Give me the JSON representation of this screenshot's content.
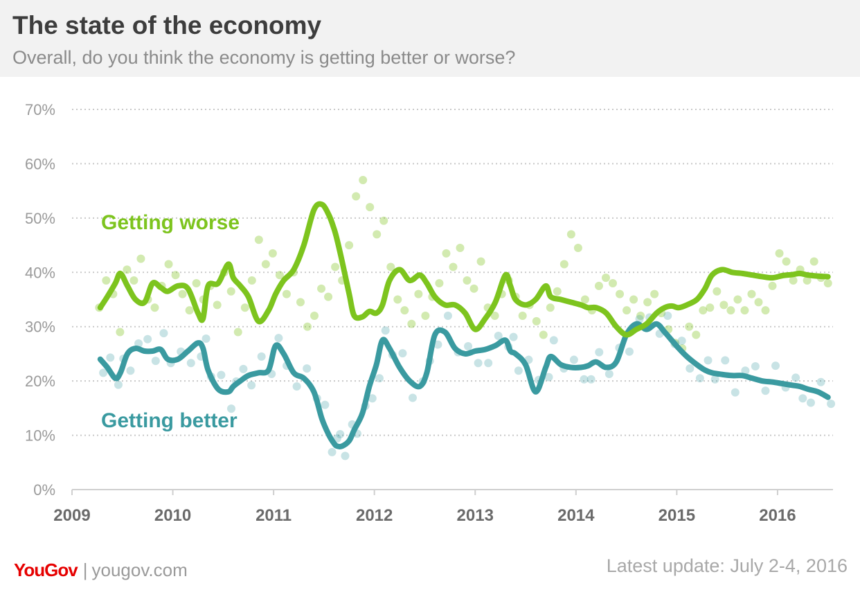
{
  "header": {
    "title": "The state of the economy",
    "subtitle": "Overall, do you think the economy is getting better or worse?"
  },
  "footer": {
    "logo": "YouGov",
    "separator": "|",
    "site": "yougov.com",
    "update": "Latest update: July 2-4, 2016"
  },
  "colors": {
    "worse": "#7dc41e",
    "better": "#3a9aa0",
    "axis": "#cfcfcf",
    "grid": "#c8c8c8",
    "tick": "#9a9a9a",
    "year": "#6a6a6a",
    "brand": "#e60000"
  },
  "chart_data": {
    "type": "line",
    "title": "The state of the economy",
    "subtitle": "Overall, do you think the economy is getting better or worse?",
    "xlim": [
      2009.0,
      2016.55
    ],
    "ylim": [
      0,
      70
    ],
    "xticks": [
      "2009",
      "2010",
      "2011",
      "2012",
      "2013",
      "2014",
      "2015",
      "2016"
    ],
    "yticks": [
      "0%",
      "10%",
      "20%",
      "30%",
      "40%",
      "50%",
      "60%",
      "70%"
    ],
    "grid": true,
    "series_labels_position": "inline",
    "series": [
      {
        "name": "Getting worse",
        "color": "#7dc41e",
        "x": [
          2009.28,
          2009.35,
          2009.43,
          2009.48,
          2009.55,
          2009.63,
          2009.72,
          2009.8,
          2009.88,
          2009.95,
          2010.05,
          2010.15,
          2010.25,
          2010.3,
          2010.35,
          2010.45,
          2010.55,
          2010.6,
          2010.67,
          2010.75,
          2010.85,
          2010.95,
          2011.02,
          2011.1,
          2011.2,
          2011.3,
          2011.4,
          2011.48,
          2011.55,
          2011.6,
          2011.63,
          2011.68,
          2011.75,
          2011.8,
          2011.88,
          2011.95,
          2012.02,
          2012.08,
          2012.15,
          2012.25,
          2012.35,
          2012.45,
          2012.52,
          2012.6,
          2012.7,
          2012.8,
          2012.9,
          2013.0,
          2013.1,
          2013.2,
          2013.3,
          2013.35,
          2013.4,
          2013.5,
          2013.6,
          2013.7,
          2013.75,
          2013.85,
          2013.95,
          2014.05,
          2014.12,
          2014.2,
          2014.3,
          2014.4,
          2014.5,
          2014.6,
          2014.7,
          2014.8,
          2014.88,
          2014.95,
          2015.02,
          2015.1,
          2015.2,
          2015.28,
          2015.35,
          2015.45,
          2015.55,
          2015.65,
          2015.75,
          2015.85,
          2015.95,
          2016.05,
          2016.15,
          2016.22,
          2016.3,
          2016.4,
          2016.5
        ],
        "values": [
          33.5,
          35.5,
          38,
          39.8,
          37.5,
          35,
          34.5,
          38,
          37.2,
          36.5,
          37.5,
          37,
          32.5,
          31.5,
          37.5,
          38,
          41.5,
          39,
          37.5,
          35.5,
          31,
          33,
          36,
          38.5,
          40.5,
          45,
          51.5,
          52.5,
          50.5,
          48,
          46,
          42,
          36,
          32,
          31.8,
          32.8,
          32.5,
          34,
          38.5,
          40.5,
          38.5,
          39.5,
          38,
          35.5,
          34,
          34,
          32.5,
          29.5,
          31.5,
          34.5,
          39.5,
          37.5,
          35,
          34,
          35,
          37.5,
          35.5,
          35,
          34.5,
          34,
          33.5,
          33.5,
          32.5,
          30,
          28.5,
          29.5,
          30.5,
          32.5,
          33.5,
          33.8,
          33.5,
          34,
          35,
          37,
          39.5,
          40.5,
          40,
          39.8,
          39.5,
          39.2,
          39,
          39.4,
          39.6,
          39.8,
          39.5,
          39.3,
          39.2
        ],
        "scatter_y": [
          33.5,
          38.5,
          36,
          29,
          40.5,
          38.5,
          42.5,
          35,
          33.5,
          37.5,
          41.5,
          39.5,
          36,
          33,
          38,
          35,
          37.5,
          34,
          40,
          36.5,
          29,
          33.5,
          38.5,
          46,
          41.5,
          43.5,
          39.5,
          36,
          40,
          34.5,
          30,
          32,
          37,
          35.5,
          41,
          38.5,
          45,
          54,
          57,
          52,
          47,
          49.5,
          41,
          35,
          33,
          30.5,
          36,
          32,
          35.5,
          38,
          43.5,
          41,
          44.5,
          38.5,
          37,
          42,
          33.5,
          32,
          36,
          38.5,
          35.5,
          32,
          34,
          31,
          28.5,
          33.5,
          36.5,
          41.5,
          47,
          44.5,
          35,
          33,
          37.5,
          39,
          38,
          36,
          33,
          35,
          32,
          34.5,
          36,
          32.5,
          29.5,
          27,
          26,
          30,
          28.5,
          33,
          33.5,
          36.5,
          34,
          33,
          35,
          33,
          36,
          34.5,
          33,
          37.5,
          43.5,
          42,
          38.5,
          40.5,
          38.5,
          42,
          39,
          38
        ]
      },
      {
        "name": "Getting better",
        "color": "#3a9aa0",
        "x": [
          2009.28,
          2009.35,
          2009.43,
          2009.48,
          2009.55,
          2009.63,
          2009.72,
          2009.8,
          2009.88,
          2009.95,
          2010.05,
          2010.15,
          2010.25,
          2010.3,
          2010.35,
          2010.45,
          2010.55,
          2010.6,
          2010.67,
          2010.75,
          2010.85,
          2010.95,
          2011.02,
          2011.1,
          2011.2,
          2011.3,
          2011.4,
          2011.48,
          2011.55,
          2011.6,
          2011.63,
          2011.68,
          2011.75,
          2011.8,
          2011.88,
          2011.95,
          2012.02,
          2012.08,
          2012.15,
          2012.25,
          2012.35,
          2012.45,
          2012.52,
          2012.6,
          2012.7,
          2012.8,
          2012.9,
          2013.0,
          2013.1,
          2013.2,
          2013.3,
          2013.35,
          2013.4,
          2013.5,
          2013.6,
          2013.7,
          2013.75,
          2013.85,
          2013.95,
          2014.05,
          2014.12,
          2014.2,
          2014.3,
          2014.4,
          2014.5,
          2014.6,
          2014.7,
          2014.8,
          2014.88,
          2014.95,
          2015.02,
          2015.1,
          2015.2,
          2015.28,
          2015.35,
          2015.45,
          2015.55,
          2015.65,
          2015.75,
          2015.85,
          2015.95,
          2016.05,
          2016.15,
          2016.22,
          2016.3,
          2016.4,
          2016.5
        ],
        "values": [
          24,
          22.5,
          20.5,
          21.5,
          25,
          26,
          25.5,
          25.5,
          25.8,
          24,
          24,
          25.5,
          27,
          26,
          22,
          18.5,
          18,
          19,
          20,
          21,
          21.5,
          22,
          26.5,
          25,
          21.5,
          20.5,
          18,
          13,
          10,
          8.5,
          8,
          8,
          9,
          11,
          14,
          19,
          23,
          27.5,
          26,
          22.5,
          20,
          19,
          21.5,
          28.5,
          29,
          26,
          25,
          25.5,
          25.8,
          26.5,
          27.5,
          25.5,
          25,
          23,
          18,
          22.5,
          24.5,
          23,
          22.5,
          22.5,
          22.8,
          23.5,
          22.5,
          23.5,
          28.5,
          30.5,
          29.5,
          30.5,
          29,
          27.5,
          26,
          24.5,
          23,
          22,
          21.5,
          21.2,
          21,
          21,
          20.5,
          20,
          19.8,
          19.5,
          19.2,
          19,
          18.5,
          18,
          17
        ]
      }
    ]
  }
}
